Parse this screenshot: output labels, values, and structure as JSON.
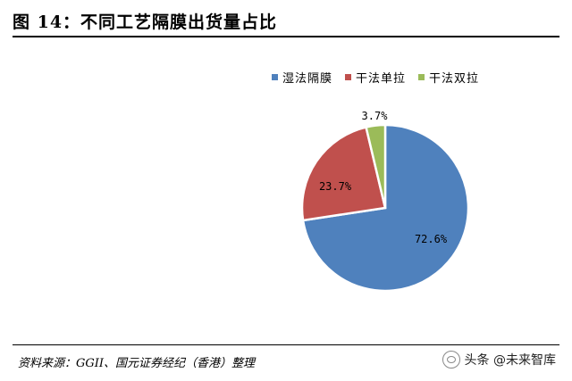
{
  "header": {
    "title": "图 14：不同工艺隔膜出货量占比"
  },
  "chart_data": {
    "type": "pie",
    "series": [
      {
        "name": "湿法隔膜",
        "value": 72.6,
        "label": "72.6%",
        "color": "#4f81bd"
      },
      {
        "name": "干法单拉",
        "value": 23.7,
        "label": "23.7%",
        "color": "#c0504d"
      },
      {
        "name": "干法双拉",
        "value": 3.7,
        "label": "3.7%",
        "color": "#9bbb59"
      }
    ],
    "legend_position": "top-right"
  },
  "footer": {
    "source": "资料来源：GGII、国元证券经纪（香港）整理",
    "watermark": "头条 @未来智库"
  }
}
